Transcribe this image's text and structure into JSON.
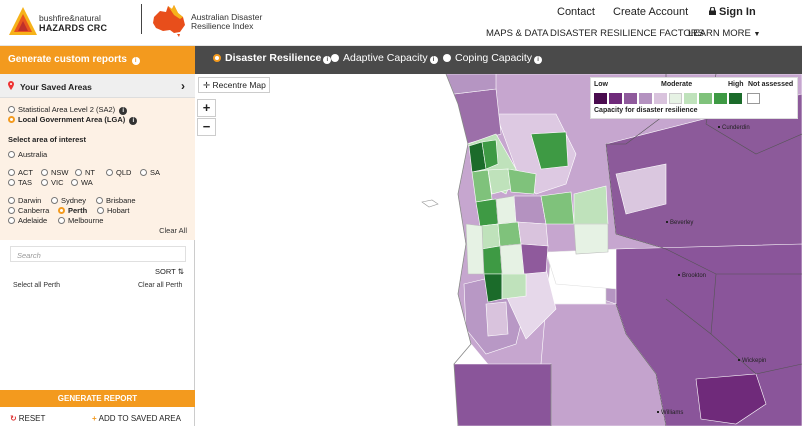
{
  "header": {
    "logo1_line1": "bushfire&natural",
    "logo1_line2": "HAZARDS CRC",
    "logo2_line1": "Australian Disaster",
    "logo2_line2": "Resilience Index",
    "nav": [
      "Contact",
      "Create Account",
      "Sign In"
    ],
    "subnav": [
      "MAPS & DATA",
      "DISASTER RESILIENCE FACTORS",
      "LEARN MORE"
    ]
  },
  "tabs": {
    "custom_reports": "Generate custom reports",
    "items": [
      "Disaster Resilience",
      "Adaptive Capacity",
      "Coping Capacity"
    ],
    "selected": "Disaster Resilience"
  },
  "sidebar": {
    "saved_areas": "Your Saved Areas",
    "levels": [
      "Statistical Area Level 2 (SA2)",
      "Local Government Area (LGA)"
    ],
    "select_label": "Select area of interest",
    "australia": "Australia",
    "states_row1": [
      "ACT",
      "NSW",
      "NT",
      "QLD",
      "SA"
    ],
    "states_row2": [
      "TAS",
      "VIC",
      "WA"
    ],
    "cities_row1": [
      "Darwin",
      "Sydney",
      "Brisbane"
    ],
    "cities_row2": [
      "Canberra",
      "Perth",
      "Hobart"
    ],
    "cities_row3": [
      "Adelaide",
      "Melbourne"
    ],
    "clear_all": "Clear All",
    "search_placeholder": "Search",
    "sort": "SORT",
    "select_all": "Select all Perth",
    "clear_perth": "Clear all Perth",
    "generate": "GENERATE REPORT",
    "reset": "RESET",
    "add_saved": "ADD TO SAVED AREA"
  },
  "map": {
    "recentre": "Recentre Map",
    "zoom_in": "+",
    "zoom_out": "−",
    "legend": {
      "low": "Low",
      "moderate": "Moderate",
      "high": "High",
      "not_assessed": "Not assessed",
      "caption": "Capacity for disaster resilience",
      "colors": [
        "#4a0c4f",
        "#6f2a7a",
        "#8f5a9c",
        "#b492c0",
        "#d9c3dd",
        "#e6f2e4",
        "#bfe2bb",
        "#7fc27b",
        "#3e9a44",
        "#1b6b2a",
        "#ffffff"
      ]
    },
    "towns": [
      "Cunderdin",
      "Beverley",
      "Brookton",
      "Wickepin",
      "Williams"
    ]
  }
}
